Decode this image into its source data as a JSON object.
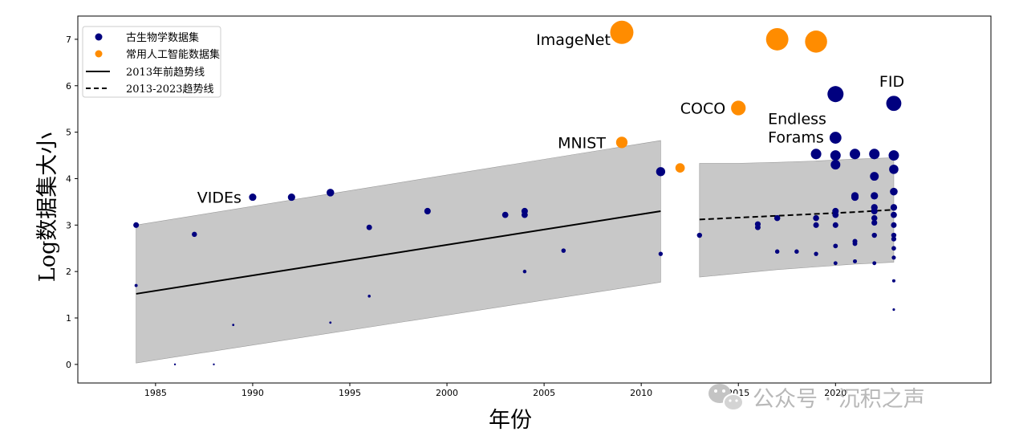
{
  "chart_data": {
    "type": "scatter",
    "xlabel": "年份",
    "ylabel": "Log数据集大小",
    "xlim": [
      1981,
      2028
    ],
    "ylim": [
      -0.4,
      7.5
    ],
    "x_ticks": [
      1985,
      1990,
      1995,
      2000,
      2005,
      2010,
      2015,
      2020
    ],
    "y_ticks": [
      0,
      1,
      2,
      3,
      4,
      5,
      6,
      7
    ],
    "grid": false,
    "legend_position": "top-left",
    "colors": {
      "paleo": "#00007f",
      "ai": "#ff8c00",
      "band": "#c8c8c8",
      "trend": "#000000"
    },
    "series": [
      {
        "name": "古生物学数据集",
        "kind": "scatter",
        "points": [
          [
            1984,
            3.0
          ],
          [
            1984,
            1.7
          ],
          [
            1986,
            0.0
          ],
          [
            1987,
            2.8
          ],
          [
            1988,
            0.0
          ],
          [
            1989,
            0.85
          ],
          [
            1990,
            3.6
          ],
          [
            1992,
            3.6
          ],
          [
            1994,
            3.7
          ],
          [
            1994,
            0.9
          ],
          [
            1996,
            2.95
          ],
          [
            1996,
            1.47
          ],
          [
            1999,
            3.3
          ],
          [
            2003,
            3.22
          ],
          [
            2004,
            3.3
          ],
          [
            2004,
            3.22
          ],
          [
            2004,
            2.0
          ],
          [
            2006,
            2.45
          ],
          [
            2011,
            4.15
          ],
          [
            2011,
            2.38
          ],
          [
            2013,
            2.78
          ],
          [
            2016,
            3.02
          ],
          [
            2016,
            2.95
          ],
          [
            2017,
            3.15
          ],
          [
            2017,
            2.43
          ],
          [
            2018,
            2.43
          ],
          [
            2019,
            4.53
          ],
          [
            2019,
            3.15
          ],
          [
            2019,
            3.0
          ],
          [
            2019,
            2.38
          ],
          [
            2020,
            5.82
          ],
          [
            2020,
            4.88
          ],
          [
            2020,
            4.5
          ],
          [
            2020,
            4.3
          ],
          [
            2020,
            3.3
          ],
          [
            2020,
            3.22
          ],
          [
            2020,
            3.0
          ],
          [
            2020,
            2.55
          ],
          [
            2020,
            2.18
          ],
          [
            2021,
            4.53
          ],
          [
            2021,
            3.63
          ],
          [
            2021,
            3.6
          ],
          [
            2021,
            2.65
          ],
          [
            2021,
            2.6
          ],
          [
            2021,
            2.22
          ],
          [
            2022,
            4.53
          ],
          [
            2022,
            4.05
          ],
          [
            2022,
            3.63
          ],
          [
            2022,
            3.38
          ],
          [
            2022,
            3.3
          ],
          [
            2022,
            3.15
          ],
          [
            2022,
            3.05
          ],
          [
            2022,
            2.78
          ],
          [
            2022,
            2.18
          ],
          [
            2023,
            5.62
          ],
          [
            2023,
            4.5
          ],
          [
            2023,
            4.2
          ],
          [
            2023,
            3.72
          ],
          [
            2023,
            3.38
          ],
          [
            2023,
            3.22
          ],
          [
            2023,
            3.0
          ],
          [
            2023,
            2.78
          ],
          [
            2023,
            2.7
          ],
          [
            2023,
            2.5
          ],
          [
            2023,
            2.3
          ],
          [
            2023,
            1.8
          ],
          [
            2023,
            1.18
          ]
        ]
      },
      {
        "name": "常用人工智能数据集",
        "kind": "scatter",
        "points": [
          [
            2009,
            7.15
          ],
          [
            2017,
            7.0
          ],
          [
            2019,
            6.95
          ],
          [
            2015,
            5.52
          ],
          [
            2009,
            4.78
          ],
          [
            2012,
            4.23
          ]
        ]
      },
      {
        "name": "2013年前趋势线",
        "kind": "line",
        "x": [
          1984,
          2011
        ],
        "y": [
          1.52,
          3.3
        ],
        "band_upper": [
          3.0,
          4.82
        ],
        "band_lower": [
          0.03,
          1.77
        ]
      },
      {
        "name": "2013-2023趋势线",
        "kind": "dashed-line",
        "x": [
          2013,
          2015,
          2017,
          2019,
          2021,
          2023
        ],
        "y": [
          3.12,
          3.16,
          3.2,
          3.24,
          3.28,
          3.33
        ],
        "band_upper": [
          4.33,
          4.33,
          4.35,
          4.38,
          4.42,
          4.45
        ],
        "band_lower": [
          1.88,
          1.96,
          2.04,
          2.1,
          2.16,
          2.2
        ]
      }
    ],
    "annotations": [
      {
        "text": "ImageNet",
        "x": 2009,
        "y": 7.15
      },
      {
        "text": "MNIST",
        "x": 2009,
        "y": 4.78
      },
      {
        "text": "COCO",
        "x": 2015,
        "y": 5.52
      },
      {
        "text": "Endless",
        "x": 2019,
        "y": 5.3
      },
      {
        "text": "Forams",
        "x": 2019,
        "y": 4.9
      },
      {
        "text": "VIDEs",
        "x": 1990,
        "y": 3.6
      },
      {
        "text": "FID",
        "x": 2023,
        "y": 6.1
      }
    ]
  },
  "watermark": {
    "text": "公众号 · 沉积之声",
    "icon": "wechat-icon"
  }
}
